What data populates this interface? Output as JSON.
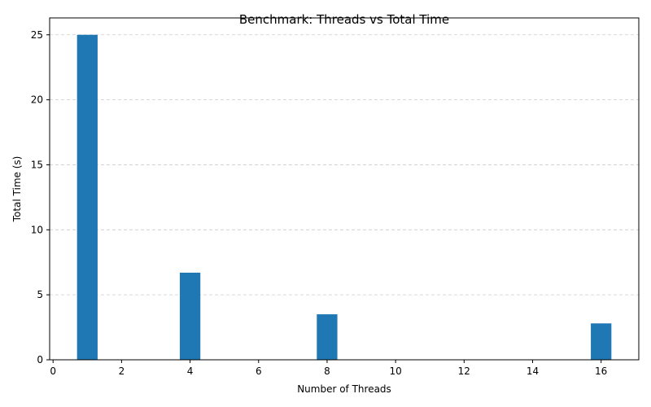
{
  "chart_data": {
    "type": "bar",
    "title": "Benchmark: Threads vs Total Time",
    "xlabel": "Number of Threads",
    "ylabel": "Total Time (s)",
    "x": [
      1,
      4,
      8,
      16
    ],
    "values": [
      25.0,
      6.7,
      3.5,
      2.8
    ],
    "bar_width": 0.6,
    "xlim": [
      -0.1,
      17.1
    ],
    "ylim": [
      0,
      26.3
    ],
    "xticks": [
      0,
      2,
      4,
      6,
      8,
      10,
      12,
      14,
      16
    ],
    "yticks": [
      0,
      5,
      10,
      15,
      20,
      25
    ],
    "grid": {
      "axis": "y",
      "style": "dashed"
    },
    "bar_color": "#1f77b4"
  }
}
